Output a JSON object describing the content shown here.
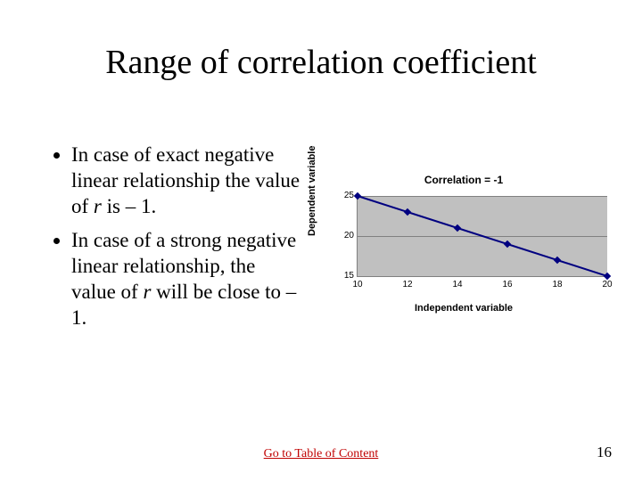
{
  "title": "Range of correlation coefficient",
  "bullets": {
    "b1a": "In case of exact negative linear relationship the value of ",
    "b1r": "r",
    "b1b": " is – 1.",
    "b2a": "In case of a strong negative linear relationship, the value of ",
    "b2r": "r",
    "b2b": " will be close to – 1."
  },
  "chart": {
    "type": "scatter-line",
    "title": "Correlation = -1",
    "xlabel": "Independent variable",
    "ylabel": "Dependent variable",
    "xlim": [
      10,
      20
    ],
    "ylim": [
      15,
      25
    ],
    "xticks": [
      10,
      12,
      14,
      16,
      18,
      20
    ],
    "yticks": [
      15,
      20,
      25
    ],
    "plot_bg": "#c0c0c0",
    "grid_color": "#808080",
    "line_color": "#000080",
    "marker_color": "#000080",
    "marker_shape": "diamond",
    "marker_size": 6,
    "line_width": 2,
    "points": [
      {
        "x": 10,
        "y": 25
      },
      {
        "x": 12,
        "y": 23
      },
      {
        "x": 14,
        "y": 21
      },
      {
        "x": 16,
        "y": 19
      },
      {
        "x": 18,
        "y": 17
      },
      {
        "x": 20,
        "y": 15
      }
    ],
    "title_fontsize": 12,
    "label_fontsize": 11,
    "tick_fontsize": 10,
    "font_family": "Arial"
  },
  "footer": {
    "link_text": "Go to Table of Content",
    "slide_number": "16",
    "link_color": "#c00000"
  }
}
